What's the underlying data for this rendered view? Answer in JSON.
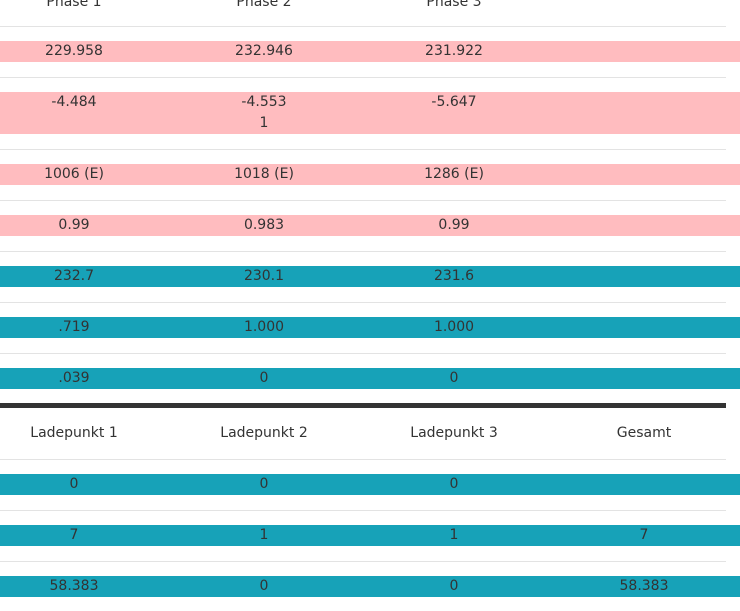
{
  "phases": {
    "headers": [
      "Phase 1",
      "Phase 2",
      "Phase 3"
    ],
    "rows": [
      {
        "style": "pink",
        "values": [
          "229.958",
          "232.946",
          "231.922"
        ]
      },
      {
        "style": "pink",
        "values": [
          "-4.484",
          "-4.553\n1",
          "-5.647"
        ]
      },
      {
        "style": "pink",
        "values": [
          "1006 (E)",
          "1018 (E)",
          "1286 (E)"
        ]
      },
      {
        "style": "pink",
        "values": [
          "0.99",
          "0.983",
          "0.99"
        ]
      },
      {
        "style": "teal",
        "values": [
          "232.7",
          "230.1",
          "231.6"
        ]
      },
      {
        "style": "teal",
        "values": [
          ".719",
          "1.000",
          "1.000"
        ]
      },
      {
        "style": "teal",
        "values": [
          ".039",
          "0",
          "0"
        ]
      }
    ]
  },
  "ladepunkte": {
    "headers": [
      "Ladepunkt 1",
      "Ladepunkt 2",
      "Ladepunkt 3",
      "Gesamt"
    ],
    "rows": [
      {
        "style": "teal",
        "values": [
          "0",
          "0",
          "0",
          ""
        ]
      },
      {
        "style": "teal",
        "values": [
          "7",
          "1",
          "1",
          "7"
        ]
      },
      {
        "style": "teal",
        "values": [
          "58.383",
          "0",
          "0",
          "58.383"
        ]
      }
    ]
  }
}
